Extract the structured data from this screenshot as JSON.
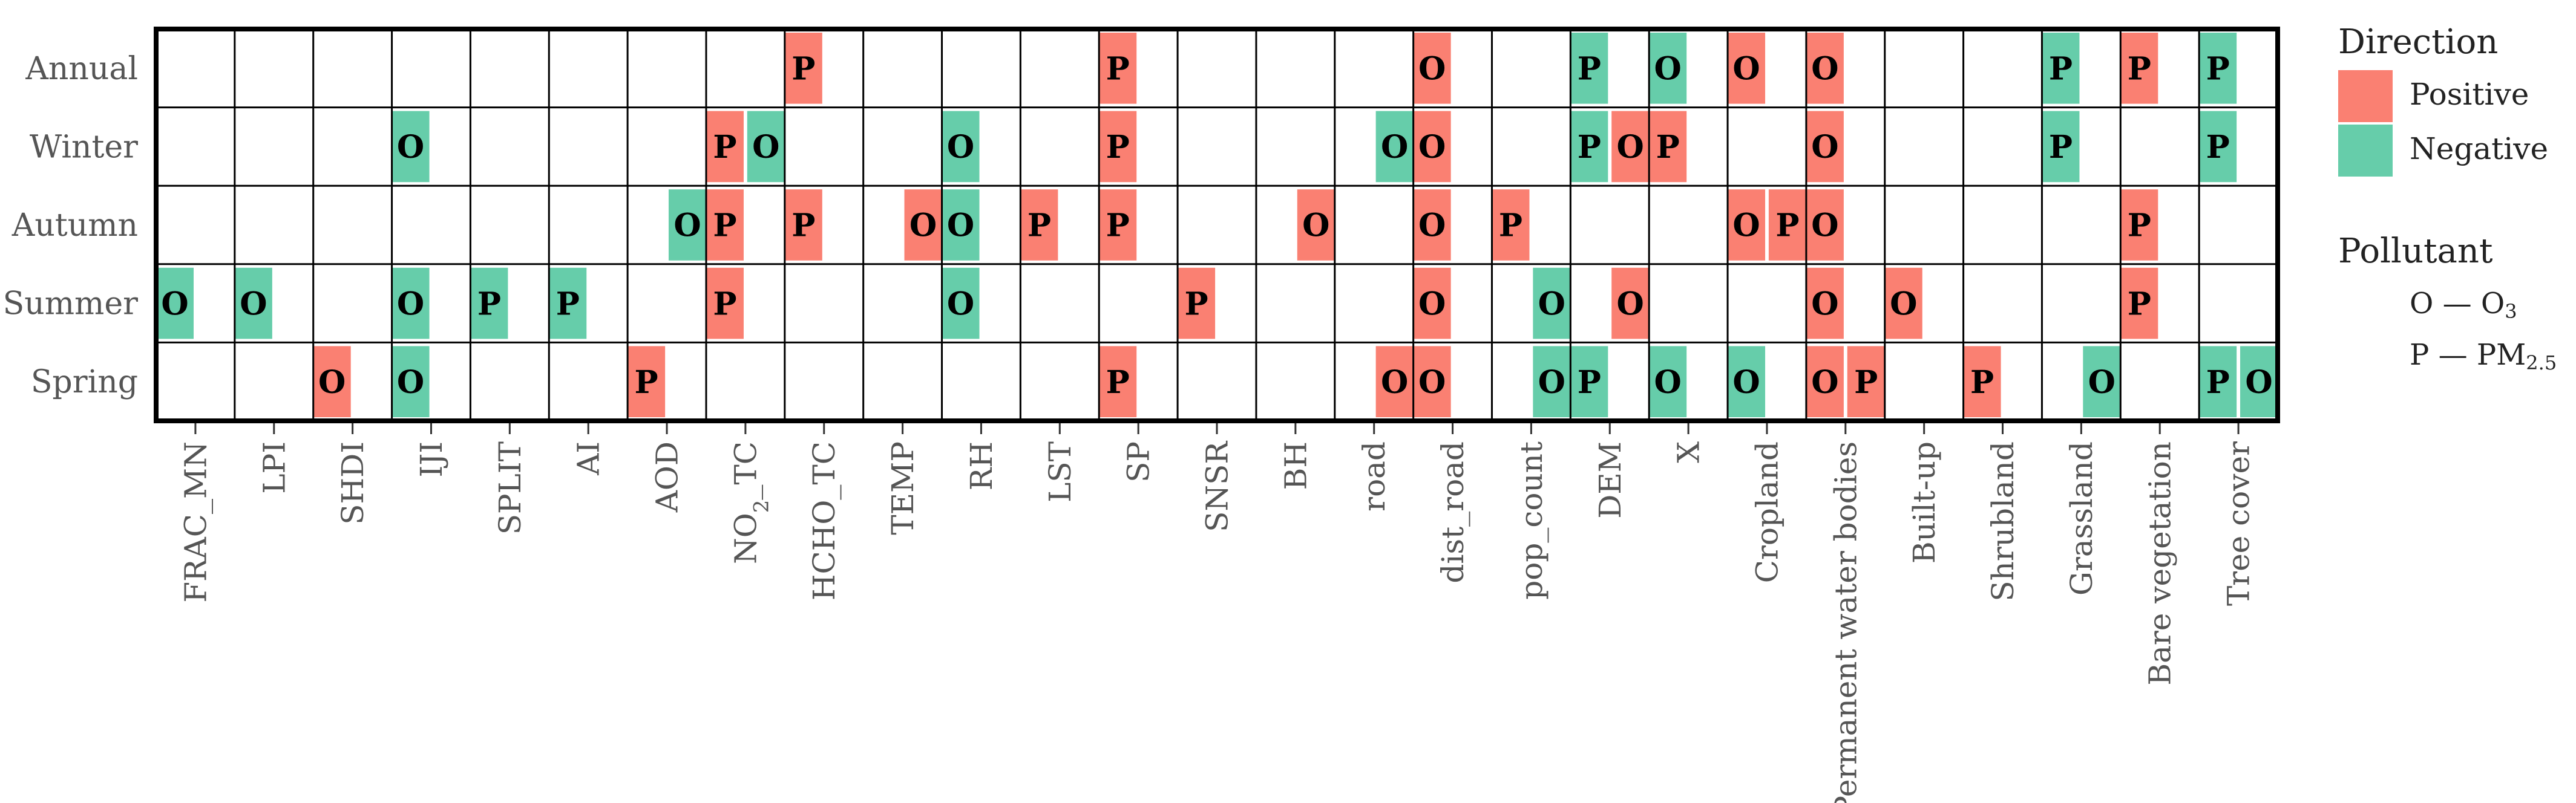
{
  "chart_data": {
    "type": "heatmap",
    "rows": [
      "Annual",
      "Winter",
      "Autumn",
      "Summer",
      "Spring"
    ],
    "columns": [
      "FRAC_MN",
      "LPI",
      "SHDI",
      "IJI",
      "SPLIT",
      "AI",
      "AOD",
      "NO2_TC",
      "HCHO_TC",
      "TEMP",
      "RH",
      "LST",
      "SP",
      "SNSR",
      "BH",
      "road",
      "dist_road",
      "pop_count",
      "DEM",
      "X",
      "Cropland",
      "Permanent water bodies",
      "Built-up",
      "Shrubland",
      "Grassland",
      "Bare vegetation",
      "Tree cover"
    ],
    "cells": [
      {
        "row": "Annual",
        "col": "HCHO_TC",
        "half": "left",
        "pollutant": "P",
        "direction": "Positive"
      },
      {
        "row": "Annual",
        "col": "SP",
        "half": "left",
        "pollutant": "P",
        "direction": "Positive"
      },
      {
        "row": "Annual",
        "col": "dist_road",
        "half": "left",
        "pollutant": "O",
        "direction": "Positive"
      },
      {
        "row": "Annual",
        "col": "DEM",
        "half": "left",
        "pollutant": "P",
        "direction": "Negative"
      },
      {
        "row": "Annual",
        "col": "X",
        "half": "left",
        "pollutant": "O",
        "direction": "Negative"
      },
      {
        "row": "Annual",
        "col": "Cropland",
        "half": "left",
        "pollutant": "O",
        "direction": "Positive"
      },
      {
        "row": "Annual",
        "col": "Permanent water bodies",
        "half": "left",
        "pollutant": "O",
        "direction": "Positive"
      },
      {
        "row": "Annual",
        "col": "Grassland",
        "half": "left",
        "pollutant": "P",
        "direction": "Negative"
      },
      {
        "row": "Annual",
        "col": "Bare vegetation",
        "half": "left",
        "pollutant": "P",
        "direction": "Positive"
      },
      {
        "row": "Annual",
        "col": "Tree cover",
        "half": "left",
        "pollutant": "P",
        "direction": "Negative"
      },
      {
        "row": "Winter",
        "col": "IJI",
        "half": "left",
        "pollutant": "O",
        "direction": "Negative"
      },
      {
        "row": "Winter",
        "col": "NO2_TC",
        "half": "left",
        "pollutant": "P",
        "direction": "Positive"
      },
      {
        "row": "Winter",
        "col": "NO2_TC",
        "half": "right",
        "pollutant": "O",
        "direction": "Negative"
      },
      {
        "row": "Winter",
        "col": "RH",
        "half": "left",
        "pollutant": "O",
        "direction": "Negative"
      },
      {
        "row": "Winter",
        "col": "SP",
        "half": "left",
        "pollutant": "P",
        "direction": "Positive"
      },
      {
        "row": "Winter",
        "col": "road",
        "half": "right",
        "pollutant": "O",
        "direction": "Negative"
      },
      {
        "row": "Winter",
        "col": "dist_road",
        "half": "left",
        "pollutant": "O",
        "direction": "Positive"
      },
      {
        "row": "Winter",
        "col": "DEM",
        "half": "left",
        "pollutant": "P",
        "direction": "Negative"
      },
      {
        "row": "Winter",
        "col": "DEM",
        "half": "right",
        "pollutant": "O",
        "direction": "Positive"
      },
      {
        "row": "Winter",
        "col": "X",
        "half": "left",
        "pollutant": "P",
        "direction": "Positive"
      },
      {
        "row": "Winter",
        "col": "Permanent water bodies",
        "half": "left",
        "pollutant": "O",
        "direction": "Positive"
      },
      {
        "row": "Winter",
        "col": "Grassland",
        "half": "left",
        "pollutant": "P",
        "direction": "Negative"
      },
      {
        "row": "Winter",
        "col": "Tree cover",
        "half": "left",
        "pollutant": "P",
        "direction": "Negative"
      },
      {
        "row": "Autumn",
        "col": "AOD",
        "half": "right",
        "pollutant": "O",
        "direction": "Negative"
      },
      {
        "row": "Autumn",
        "col": "NO2_TC",
        "half": "left",
        "pollutant": "P",
        "direction": "Positive"
      },
      {
        "row": "Autumn",
        "col": "HCHO_TC",
        "half": "left",
        "pollutant": "P",
        "direction": "Positive"
      },
      {
        "row": "Autumn",
        "col": "TEMP",
        "half": "right",
        "pollutant": "O",
        "direction": "Positive"
      },
      {
        "row": "Autumn",
        "col": "RH",
        "half": "left",
        "pollutant": "O",
        "direction": "Negative"
      },
      {
        "row": "Autumn",
        "col": "LST",
        "half": "left",
        "pollutant": "P",
        "direction": "Positive"
      },
      {
        "row": "Autumn",
        "col": "SP",
        "half": "left",
        "pollutant": "P",
        "direction": "Positive"
      },
      {
        "row": "Autumn",
        "col": "BH",
        "half": "right",
        "pollutant": "O",
        "direction": "Positive"
      },
      {
        "row": "Autumn",
        "col": "dist_road",
        "half": "left",
        "pollutant": "O",
        "direction": "Positive"
      },
      {
        "row": "Autumn",
        "col": "pop_count",
        "half": "left",
        "pollutant": "P",
        "direction": "Positive"
      },
      {
        "row": "Autumn",
        "col": "Cropland",
        "half": "left",
        "pollutant": "O",
        "direction": "Positive"
      },
      {
        "row": "Autumn",
        "col": "Cropland",
        "half": "right",
        "pollutant": "P",
        "direction": "Positive"
      },
      {
        "row": "Autumn",
        "col": "Permanent water bodies",
        "half": "left",
        "pollutant": "O",
        "direction": "Positive"
      },
      {
        "row": "Autumn",
        "col": "Bare vegetation",
        "half": "left",
        "pollutant": "P",
        "direction": "Positive"
      },
      {
        "row": "Summer",
        "col": "FRAC_MN",
        "half": "left",
        "pollutant": "O",
        "direction": "Negative"
      },
      {
        "row": "Summer",
        "col": "LPI",
        "half": "left",
        "pollutant": "O",
        "direction": "Negative"
      },
      {
        "row": "Summer",
        "col": "IJI",
        "half": "left",
        "pollutant": "O",
        "direction": "Negative"
      },
      {
        "row": "Summer",
        "col": "SPLIT",
        "half": "left",
        "pollutant": "P",
        "direction": "Negative"
      },
      {
        "row": "Summer",
        "col": "AI",
        "half": "left",
        "pollutant": "P",
        "direction": "Negative"
      },
      {
        "row": "Summer",
        "col": "NO2_TC",
        "half": "left",
        "pollutant": "P",
        "direction": "Positive"
      },
      {
        "row": "Summer",
        "col": "RH",
        "half": "left",
        "pollutant": "O",
        "direction": "Negative"
      },
      {
        "row": "Summer",
        "col": "SNSR",
        "half": "left",
        "pollutant": "P",
        "direction": "Positive"
      },
      {
        "row": "Summer",
        "col": "dist_road",
        "half": "left",
        "pollutant": "O",
        "direction": "Positive"
      },
      {
        "row": "Summer",
        "col": "pop_count",
        "half": "right",
        "pollutant": "O",
        "direction": "Negative"
      },
      {
        "row": "Summer",
        "col": "DEM",
        "half": "right",
        "pollutant": "O",
        "direction": "Positive"
      },
      {
        "row": "Summer",
        "col": "Permanent water bodies",
        "half": "left",
        "pollutant": "O",
        "direction": "Positive"
      },
      {
        "row": "Summer",
        "col": "Built-up",
        "half": "left",
        "pollutant": "O",
        "direction": "Positive"
      },
      {
        "row": "Summer",
        "col": "Bare vegetation",
        "half": "left",
        "pollutant": "P",
        "direction": "Positive"
      },
      {
        "row": "Spring",
        "col": "SHDI",
        "half": "left",
        "pollutant": "O",
        "direction": "Positive"
      },
      {
        "row": "Spring",
        "col": "IJI",
        "half": "left",
        "pollutant": "O",
        "direction": "Negative"
      },
      {
        "row": "Spring",
        "col": "AOD",
        "half": "left",
        "pollutant": "P",
        "direction": "Positive"
      },
      {
        "row": "Spring",
        "col": "SP",
        "half": "left",
        "pollutant": "P",
        "direction": "Positive"
      },
      {
        "row": "Spring",
        "col": "road",
        "half": "right",
        "pollutant": "O",
        "direction": "Positive"
      },
      {
        "row": "Spring",
        "col": "dist_road",
        "half": "left",
        "pollutant": "O",
        "direction": "Positive"
      },
      {
        "row": "Spring",
        "col": "pop_count",
        "half": "right",
        "pollutant": "O",
        "direction": "Negative"
      },
      {
        "row": "Spring",
        "col": "DEM",
        "half": "left",
        "pollutant": "P",
        "direction": "Negative"
      },
      {
        "row": "Spring",
        "col": "X",
        "half": "left",
        "pollutant": "O",
        "direction": "Negative"
      },
      {
        "row": "Spring",
        "col": "Cropland",
        "half": "left",
        "pollutant": "O",
        "direction": "Negative"
      },
      {
        "row": "Spring",
        "col": "Permanent water bodies",
        "half": "left",
        "pollutant": "O",
        "direction": "Positive"
      },
      {
        "row": "Spring",
        "col": "Permanent water bodies",
        "half": "right",
        "pollutant": "P",
        "direction": "Positive"
      },
      {
        "row": "Spring",
        "col": "Shrubland",
        "half": "left",
        "pollutant": "P",
        "direction": "Positive"
      },
      {
        "row": "Spring",
        "col": "Grassland",
        "half": "right",
        "pollutant": "O",
        "direction": "Negative"
      },
      {
        "row": "Spring",
        "col": "Tree cover",
        "half": "left",
        "pollutant": "P",
        "direction": "Negative"
      },
      {
        "row": "Spring",
        "col": "Tree cover",
        "half": "right",
        "pollutant": "O",
        "direction": "Negative"
      }
    ]
  },
  "legend": {
    "direction_title": "Direction",
    "positive_label": "Positive",
    "negative_label": "Negative",
    "pollutant_title": "Pollutant",
    "o_abbrev": "O",
    "o_name": "O",
    "o_sub": "3",
    "p_abbrev": "P",
    "p_name": "PM",
    "p_sub": "2.5",
    "dash": "—"
  },
  "colors": {
    "Positive": "#FA8072",
    "Negative": "#66CDAA",
    "grid": "#000000",
    "axis_text": "#555555"
  }
}
